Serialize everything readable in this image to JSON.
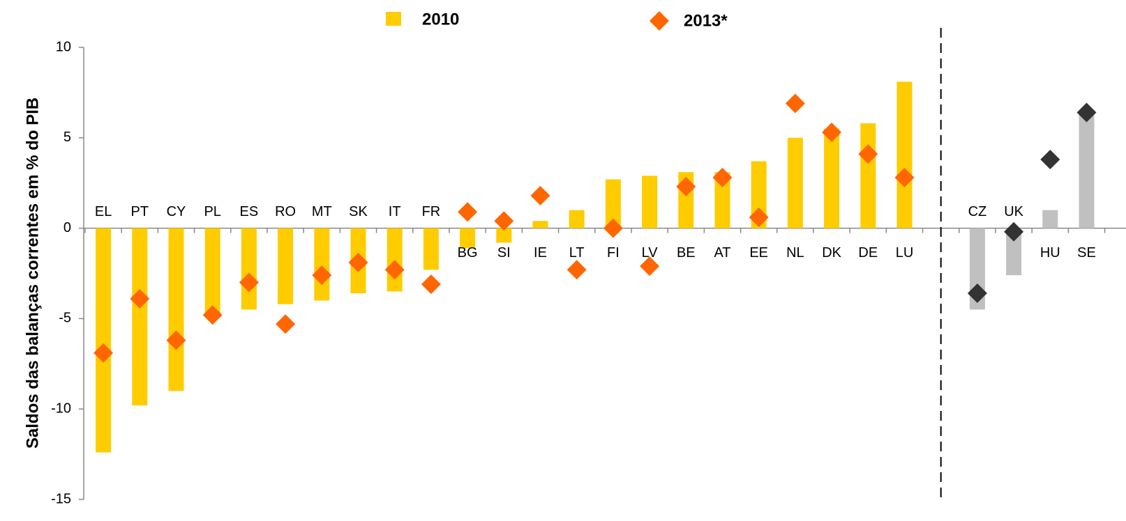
{
  "chart_data": {
    "type": "bar_scatter",
    "y_axis_label": "Saldos das balanças correntes em  % do PIB",
    "categories": [
      "EL",
      "PT",
      "CY",
      "PL",
      "ES",
      "RO",
      "MT",
      "SK",
      "IT",
      "FR",
      "BG",
      "SI",
      "IE",
      "LT",
      "FI",
      "LV",
      "BE",
      "AT",
      "EE",
      "NL",
      "DK",
      "DE",
      "LU",
      null,
      "CZ",
      "UK",
      "HU",
      "SE"
    ],
    "series": [
      {
        "name": "2010",
        "kind": "bar",
        "color": "#ffcc00",
        "colors": [
          "#ffcc00",
          "#ffcc00",
          "#ffcc00",
          "#ffcc00",
          "#ffcc00",
          "#ffcc00",
          "#ffcc00",
          "#ffcc00",
          "#ffcc00",
          "#ffcc00",
          "#ffcc00",
          "#ffcc00",
          "#ffcc00",
          "#ffcc00",
          "#ffcc00",
          "#ffcc00",
          "#ffcc00",
          "#ffcc00",
          "#ffcc00",
          "#ffcc00",
          "#ffcc00",
          "#ffcc00",
          "#ffcc00",
          null,
          "#c0c0c0",
          "#c0c0c0",
          "#c0c0c0",
          "#c0c0c0"
        ],
        "values": [
          -12.4,
          -9.8,
          -9.0,
          -4.9,
          -4.5,
          -4.2,
          -4.0,
          -3.6,
          -3.5,
          -2.3,
          -1.1,
          -0.8,
          0.4,
          1.0,
          2.7,
          2.9,
          3.1,
          3.1,
          3.7,
          5.0,
          5.5,
          5.8,
          8.1,
          null,
          -4.5,
          -2.6,
          1.0,
          6.5
        ]
      },
      {
        "name": "2013*",
        "kind": "diamond",
        "color": "#ff6600",
        "colors": [
          "#ff6600",
          "#ff6600",
          "#ff6600",
          "#ff6600",
          "#ff6600",
          "#ff6600",
          "#ff6600",
          "#ff6600",
          "#ff6600",
          "#ff6600",
          "#ff6600",
          "#ff6600",
          "#ff6600",
          "#ff6600",
          "#ff6600",
          "#ff6600",
          "#ff6600",
          "#ff6600",
          "#ff6600",
          "#ff6600",
          "#ff6600",
          "#ff6600",
          "#ff6600",
          null,
          "#333333",
          "#333333",
          "#333333",
          "#333333"
        ],
        "values": [
          -6.9,
          -3.9,
          -6.2,
          -4.8,
          -3.0,
          -5.3,
          -2.6,
          -1.9,
          -2.3,
          -3.1,
          0.9,
          0.4,
          1.8,
          -2.3,
          0.0,
          -2.1,
          2.3,
          2.8,
          0.6,
          6.9,
          5.3,
          4.1,
          2.8,
          null,
          -3.6,
          -0.2,
          3.8,
          6.4
        ]
      }
    ],
    "ylim": [
      -15,
      10
    ],
    "yticks": [
      -15,
      -10,
      -5,
      0,
      5,
      10
    ],
    "legend": "top"
  }
}
